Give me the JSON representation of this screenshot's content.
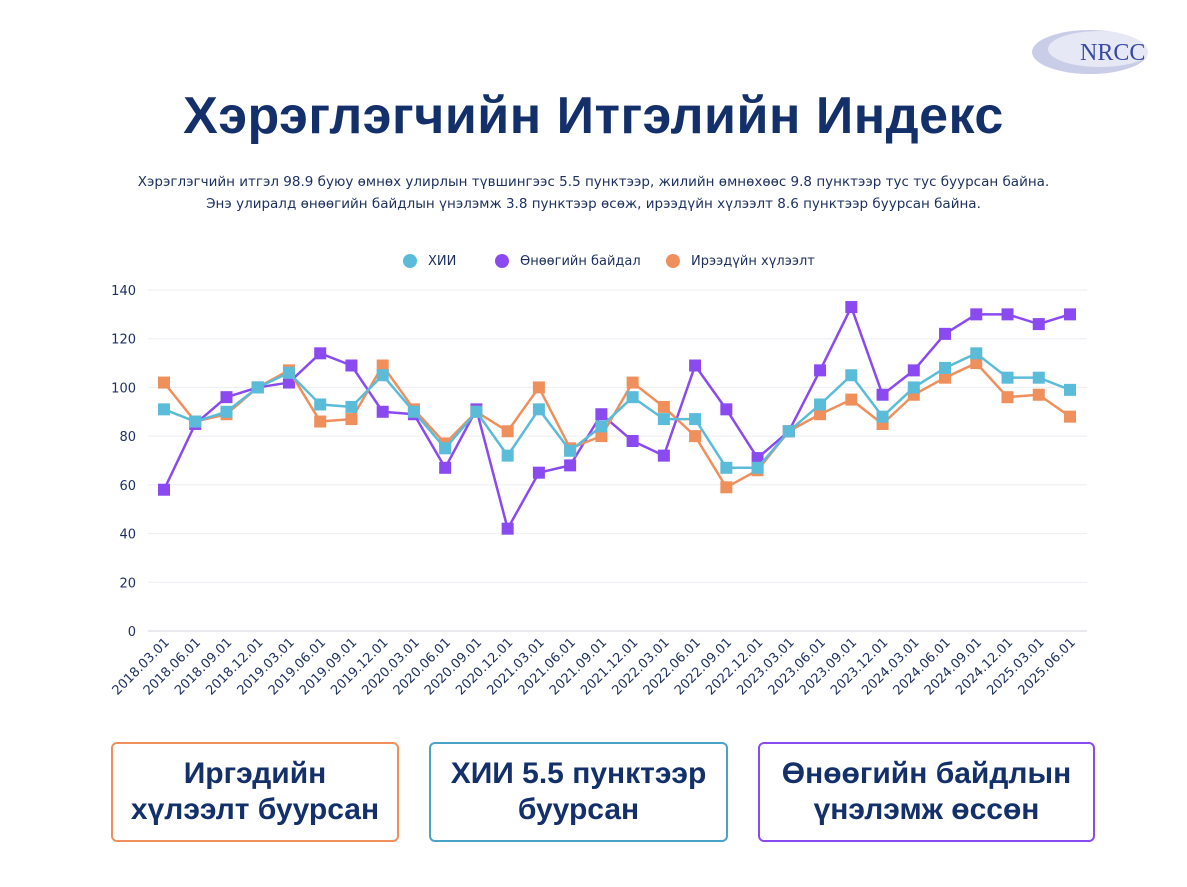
{
  "header": {
    "logo_text": "NRCC",
    "title": "Хэрэглэгчийн Итгэлийн Индекс",
    "subtitle_lines": [
      "Хэрэглэгчийн итгэл 98.9 буюу өмнөх улирлын түвшингээс 5.5 пунктээр, жилийн өмнөхөөс 9.8 пунктээр тус тус буурсан байна.",
      "Энэ улиралд өнөөгийн байдлын үнэлэмж 3.8 пунктээр өсөж, ирээдүйн хүлээлт 8.6 пунктээр буурсан байна."
    ]
  },
  "chart_data": {
    "type": "line",
    "x": [
      "2018.03.01",
      "2018.06.01",
      "2018.09.01",
      "2018.12.01",
      "2019.03.01",
      "2019.06.01",
      "2019.09.01",
      "2019.12.01",
      "2020.03.01",
      "2020.06.01",
      "2020.09.01",
      "2020.12.01",
      "2021.03.01",
      "2021.06.01",
      "2021.09.01",
      "2021.12.01",
      "2022.03.01",
      "2022.06.01",
      "2022.09.01",
      "2022.12.01",
      "2023.03.01",
      "2023.06.01",
      "2023.09.01",
      "2023.12.01",
      "2024.03.01",
      "2024.06.01",
      "2024.09.01",
      "2024.12.01",
      "2025.03.01",
      "2025.06.01"
    ],
    "series": [
      {
        "name": "ХИИ",
        "color": "#5bbcd9",
        "values": [
          91,
          86,
          90,
          100,
          106,
          93,
          92,
          105,
          90,
          75,
          90,
          72,
          91,
          74,
          84,
          96,
          87,
          87,
          67,
          67,
          82,
          93,
          105,
          88,
          100,
          108,
          114,
          104,
          104,
          99
        ]
      },
      {
        "name": "Өнөөгийн байдал",
        "color": "#8a4af0",
        "values": [
          58,
          85,
          96,
          100,
          102,
          114,
          109,
          90,
          89,
          67,
          91,
          42,
          65,
          68,
          89,
          78,
          72,
          109,
          91,
          71,
          82,
          107,
          133,
          97,
          107,
          122,
          130,
          130,
          126,
          130
        ]
      },
      {
        "name": "Ирээдүйн хүлээлт",
        "color": "#ef8f5c",
        "values": [
          102,
          86,
          89,
          100,
          107,
          86,
          87,
          109,
          91,
          77,
          90,
          82,
          100,
          75,
          80,
          102,
          92,
          80,
          59,
          66,
          82,
          89,
          95,
          85,
          97,
          104,
          110,
          96,
          97,
          88
        ]
      }
    ],
    "ylim": [
      0,
      140
    ],
    "yticks": [
      0,
      20,
      40,
      60,
      80,
      100,
      120,
      140
    ],
    "grid": true,
    "legend_position": "top-center"
  },
  "boxes": [
    {
      "lines": [
        "Иргэдийн",
        "хүлээлт буурсан"
      ],
      "color": "#ef8f5c"
    },
    {
      "lines": [
        "ХИИ 5.5 пунктээр",
        "буурсан"
      ],
      "color": "#4aa3c6"
    },
    {
      "lines": [
        "Өнөөгийн байдлын",
        "үнэлэмж өссөн"
      ],
      "color": "#8a4af0"
    }
  ]
}
